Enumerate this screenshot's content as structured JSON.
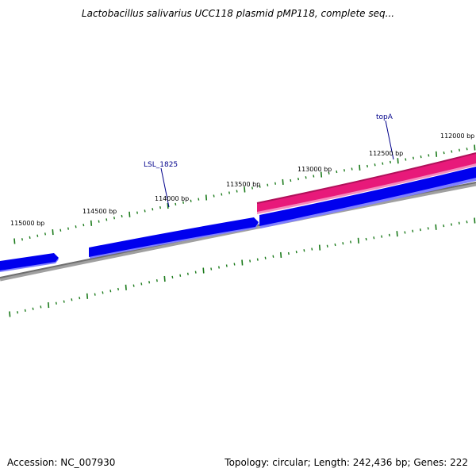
{
  "title": "Lactobacillus salivarius UCC118 plasmid pMP118, complete seq...",
  "footer": {
    "accession": "Accession: NC_007930",
    "summary": "Topology: circular; Length: 242,436 bp; Genes: 222"
  },
  "colors": {
    "forward_gene": "#0000ee",
    "highlight_gene": "#e8197a",
    "backbone": "#808080",
    "ticks": "#1a7a1a",
    "gene_label": "#00008b"
  },
  "scale_labels": [
    "115000 bp",
    "114500 bp",
    "114000 bp",
    "113500 bp",
    "113000 bp",
    "112500 bp",
    "112000 bp"
  ],
  "gene_labels": [
    "LSL_1825",
    "topA"
  ]
}
